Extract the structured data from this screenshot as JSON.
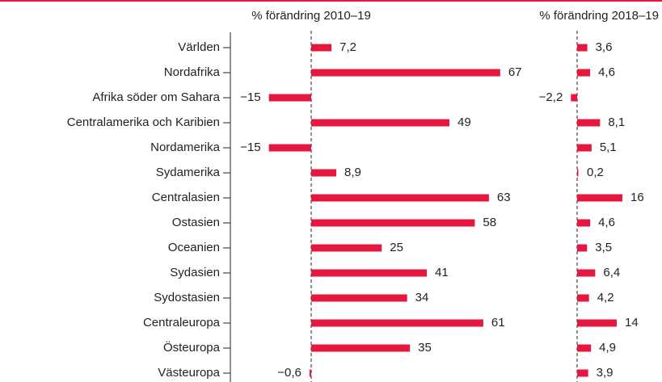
{
  "chart_data": {
    "type": "bar",
    "categories": [
      "Världen",
      "Nordafrika",
      "Afrika söder om Sahara",
      "Centralamerika och Karibien",
      "Nordamerika",
      "Sydamerika",
      "Centralasien",
      "Ostasien",
      "Oceanien",
      "Sydasien",
      "Sydostasien",
      "Centraleuropa",
      "Östeuropa",
      "Västeuropa"
    ],
    "series": [
      {
        "name": "% förändring 2010–19",
        "color": "#e5173f",
        "xlim": [
          -20,
          70
        ],
        "values": [
          7.2,
          67,
          -15,
          49,
          -15,
          8.9,
          63,
          58,
          25,
          41,
          34,
          61,
          35,
          -0.6
        ],
        "value_labels": [
          "7,2",
          "67",
          "−15",
          "49",
          "−15",
          "8,9",
          "63",
          "58",
          "25",
          "41",
          "34",
          "61",
          "35",
          "−0,6"
        ]
      },
      {
        "name": "% förändring 2018–19",
        "color": "#e5173f",
        "xlim": [
          -5,
          25
        ],
        "values": [
          3.6,
          4.6,
          -2.2,
          8.1,
          5.1,
          0.2,
          16,
          4.6,
          3.5,
          6.4,
          4.2,
          14,
          4.9,
          3.9
        ],
        "value_labels": [
          "3,6",
          "4,6",
          "−2,2",
          "8,1",
          "5,1",
          "0,2",
          "16",
          "4,6",
          "3,5",
          "6,4",
          "4,2",
          "14",
          "4,9",
          "3,9"
        ]
      }
    ]
  }
}
